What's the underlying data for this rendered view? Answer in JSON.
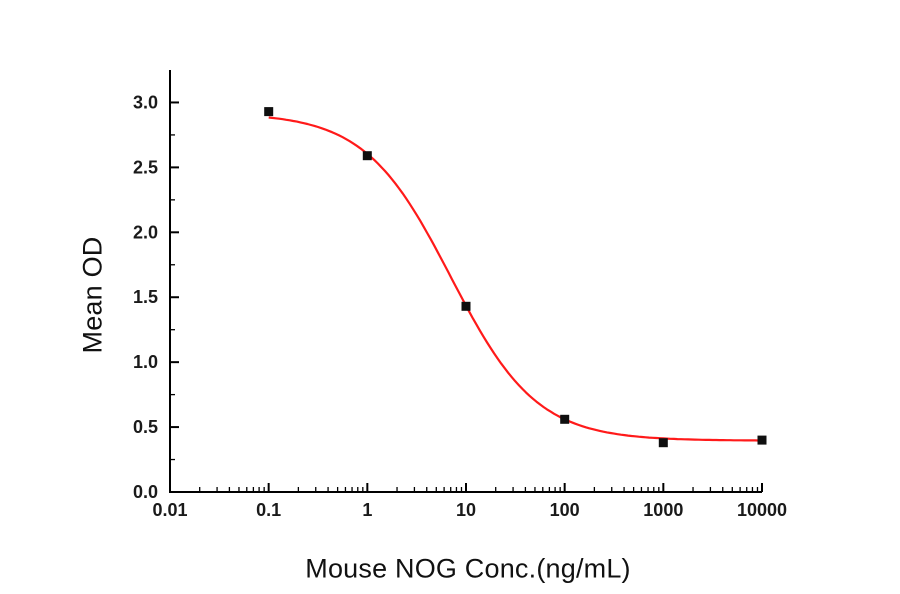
{
  "chart_data": {
    "type": "scatter",
    "title": "",
    "xlabel": "Mouse NOG Conc.(ng/mL)",
    "ylabel": "Mean OD",
    "x_scale": "log",
    "grid": false,
    "legend": false,
    "xlim": [
      0.01,
      10000
    ],
    "ylim": [
      0,
      3.25
    ],
    "x_ticks": [
      0.01,
      0.1,
      1,
      10,
      100,
      1000,
      10000
    ],
    "x_tick_labels": [
      "0.01",
      "0.1",
      "1",
      "10",
      "100",
      "1000",
      "10000"
    ],
    "y_ticks": [
      0,
      0.5,
      1,
      1.5,
      2,
      2.5,
      3
    ],
    "y_tick_labels": [
      "0.0",
      "0.5",
      "1.0",
      "1.5",
      "2.0",
      "2.5",
      "3.0"
    ],
    "y_minor_step": 0.25,
    "axis_color": "#000000",
    "tick_label_color": "#1a1a1a",
    "series": [
      {
        "name": "4pl-fit-curve",
        "type": "line",
        "color": "#ff1a1a",
        "width": 2.2,
        "x_range": [
          0.1,
          10000
        ],
        "fit": {
          "model": "4PL",
          "top": 2.92,
          "bottom": 0.395,
          "ic50": 7.0,
          "hill": 1.0
        }
      },
      {
        "name": "mean-od-points",
        "type": "scatter",
        "marker": "square",
        "marker_size": 9,
        "color": "#0f0f0f",
        "points": [
          {
            "x": 0.1,
            "y": 2.93
          },
          {
            "x": 1,
            "y": 2.59
          },
          {
            "x": 10,
            "y": 1.43
          },
          {
            "x": 100,
            "y": 0.56
          },
          {
            "x": 1000,
            "y": 0.38
          },
          {
            "x": 10000,
            "y": 0.4
          }
        ]
      }
    ]
  }
}
